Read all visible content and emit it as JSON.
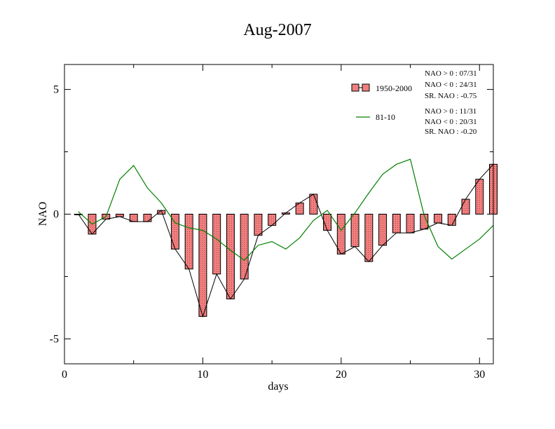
{
  "chart_data": {
    "type": "bar",
    "title": "Aug-2007",
    "xlabel": "days",
    "ylabel": "NAO",
    "xlim": [
      0,
      31
    ],
    "ylim": [
      -6,
      6
    ],
    "x_ticks": [
      0,
      10,
      20,
      30
    ],
    "y_ticks": [
      5,
      0,
      -5
    ],
    "y_tick_labels": [
      "5",
      "0",
      "-5"
    ],
    "grid": false,
    "x": [
      1,
      2,
      3,
      4,
      5,
      6,
      7,
      8,
      9,
      10,
      11,
      12,
      13,
      14,
      15,
      16,
      17,
      18,
      19,
      20,
      21,
      22,
      23,
      24,
      25,
      26,
      27,
      28,
      29,
      30,
      31
    ],
    "series": [
      {
        "name": "1950-2000",
        "kind": "bar",
        "color": "#f08080",
        "stats": [
          "NAO > 0 : 07/31",
          "NAO < 0 : 24/31",
          "SR. NAO : -0.75"
        ],
        "values": [
          0.0,
          -0.8,
          -0.2,
          -0.1,
          -0.3,
          -0.3,
          0.15,
          -1.4,
          -2.2,
          -4.1,
          -2.4,
          -3.4,
          -2.6,
          -0.85,
          -0.45,
          0.05,
          0.45,
          0.8,
          -0.65,
          -1.6,
          -1.3,
          -1.9,
          -1.25,
          -0.75,
          -0.75,
          -0.6,
          -0.35,
          -0.45,
          0.6,
          1.4,
          2.0
        ]
      },
      {
        "name": "81-10",
        "kind": "line",
        "color": "#008000",
        "stats": [
          "NAO > 0 : 11/31",
          "NAO < 0 : 20/31",
          "SR. NAO : -0.20"
        ],
        "values": [
          0.1,
          -0.4,
          -0.1,
          1.4,
          1.95,
          1.05,
          0.45,
          -0.35,
          -0.55,
          -0.65,
          -1.0,
          -1.45,
          -1.85,
          -1.25,
          -1.1,
          -1.4,
          -0.95,
          -0.25,
          0.15,
          -0.65,
          0.05,
          0.85,
          1.6,
          2.0,
          2.2,
          -0.05,
          -1.3,
          -1.8,
          -1.4,
          -1.0,
          -0.45
        ]
      }
    ],
    "legend_position": "top-right"
  }
}
